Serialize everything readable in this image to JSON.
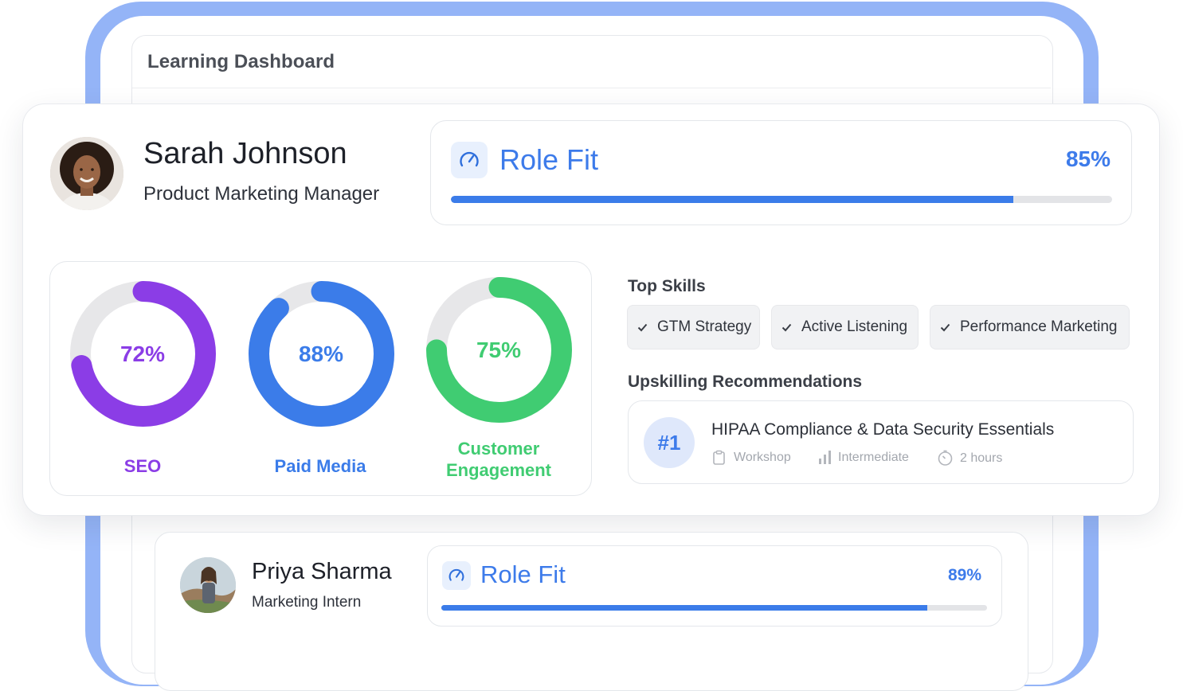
{
  "dashboard": {
    "title": "Learning Dashboard"
  },
  "profile": {
    "name": "Sarah Johnson",
    "role": "Product Marketing Manager",
    "role_fit": {
      "label": "Role Fit",
      "value_text": "85%",
      "value": 85,
      "icon": "gauge-icon"
    }
  },
  "metrics": [
    {
      "label": "SEO",
      "value_text": "72%",
      "value": 72,
      "color": "#8b3de6"
    },
    {
      "label": "Paid Media",
      "value_text": "88%",
      "value": 88,
      "color": "#3b7ce9"
    },
    {
      "label": "Customer Engagement",
      "value_text": "75%",
      "value": 75,
      "color": "#40cc72"
    }
  ],
  "top_skills": {
    "title": "Top Skills",
    "items": [
      "GTM Strategy",
      "Active Listening",
      "Performance Marketing"
    ]
  },
  "upskilling": {
    "title": "Upskilling Recommendations",
    "items": [
      {
        "rank": "#1",
        "title": "HIPAA Compliance & Data Security Essentials",
        "type": "Workshop",
        "level": "Intermediate",
        "duration": "2 hours"
      }
    ]
  },
  "second_profile": {
    "name": "Priya Sharma",
    "role": "Marketing Intern",
    "role_fit": {
      "label": "Role Fit",
      "value_text": "89%",
      "value": 89
    }
  },
  "colors": {
    "accent": "#3b7ce9",
    "frame": "#94b4f7"
  }
}
